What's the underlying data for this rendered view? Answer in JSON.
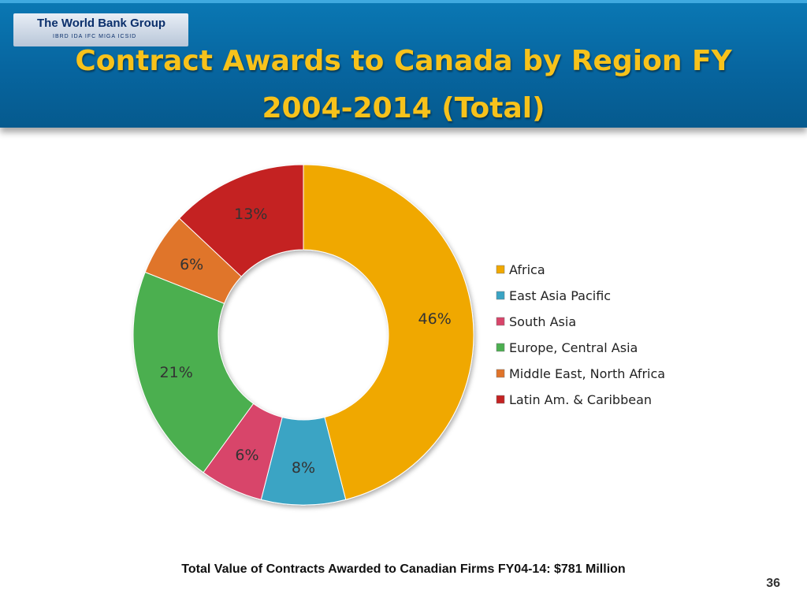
{
  "header": {
    "logo": {
      "name": "The World Bank Group",
      "subtitle": "IBRD  IDA  IFC  MIGA  ICSID"
    },
    "title_line1": "Contract Awards to Canada by Region FY",
    "title_line2": "2004-2014 (Total)"
  },
  "chart_data": {
    "type": "pie",
    "variant": "donut",
    "legend_position": "right",
    "categories": [
      "Africa",
      "East Asia Pacific",
      "South Asia",
      "Europe, Central Asia",
      "Middle East, North Africa",
      "Latin Am. & Caribbean"
    ],
    "values": [
      46,
      8,
      6,
      21,
      6,
      13
    ],
    "labels": [
      "46%",
      "8%",
      "6%",
      "21%",
      "6%",
      "13%"
    ],
    "colors": [
      "#f0a800",
      "#3aa4c4",
      "#d8456a",
      "#4caf50",
      "#e0742a",
      "#c42222"
    ],
    "unit": "%"
  },
  "footer": "Total Value of Contracts Awarded to Canadian Firms FY04-14: $781 Million",
  "page_number": "36"
}
